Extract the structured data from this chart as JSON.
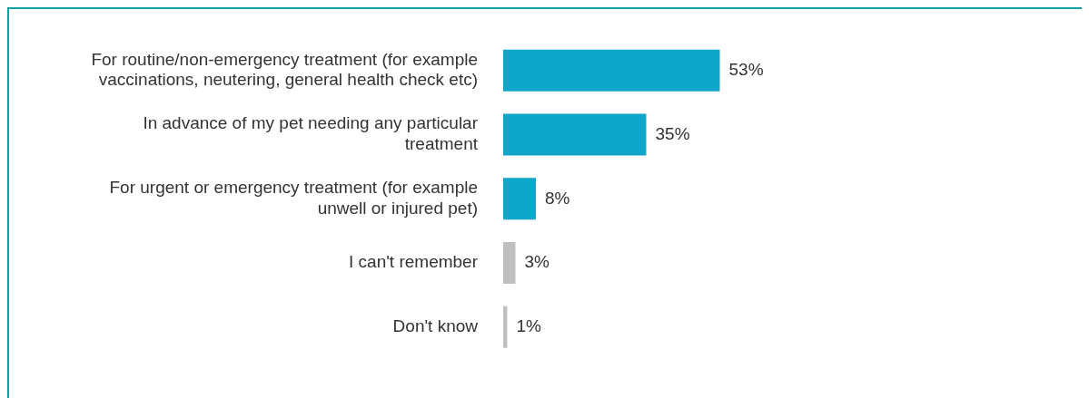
{
  "chart_data": {
    "type": "bar",
    "orientation": "horizontal",
    "categories": [
      "For routine/non-emergency treatment (for example vaccinations, neutering, general health check etc)",
      "In advance of my pet needing any particular treatment",
      "For urgent or emergency treatment (for example unwell or injured pet)",
      "I can't remember",
      "Don't know"
    ],
    "values": [
      53,
      35,
      8,
      3,
      1
    ],
    "colors": [
      "#0fa7c9",
      "#0fa7c9",
      "#0fa7c9",
      "#bfbfbf",
      "#bfbfbf"
    ],
    "value_labels": [
      "53%",
      "35%",
      "8%",
      "3%",
      "1%"
    ],
    "legend": false
  }
}
